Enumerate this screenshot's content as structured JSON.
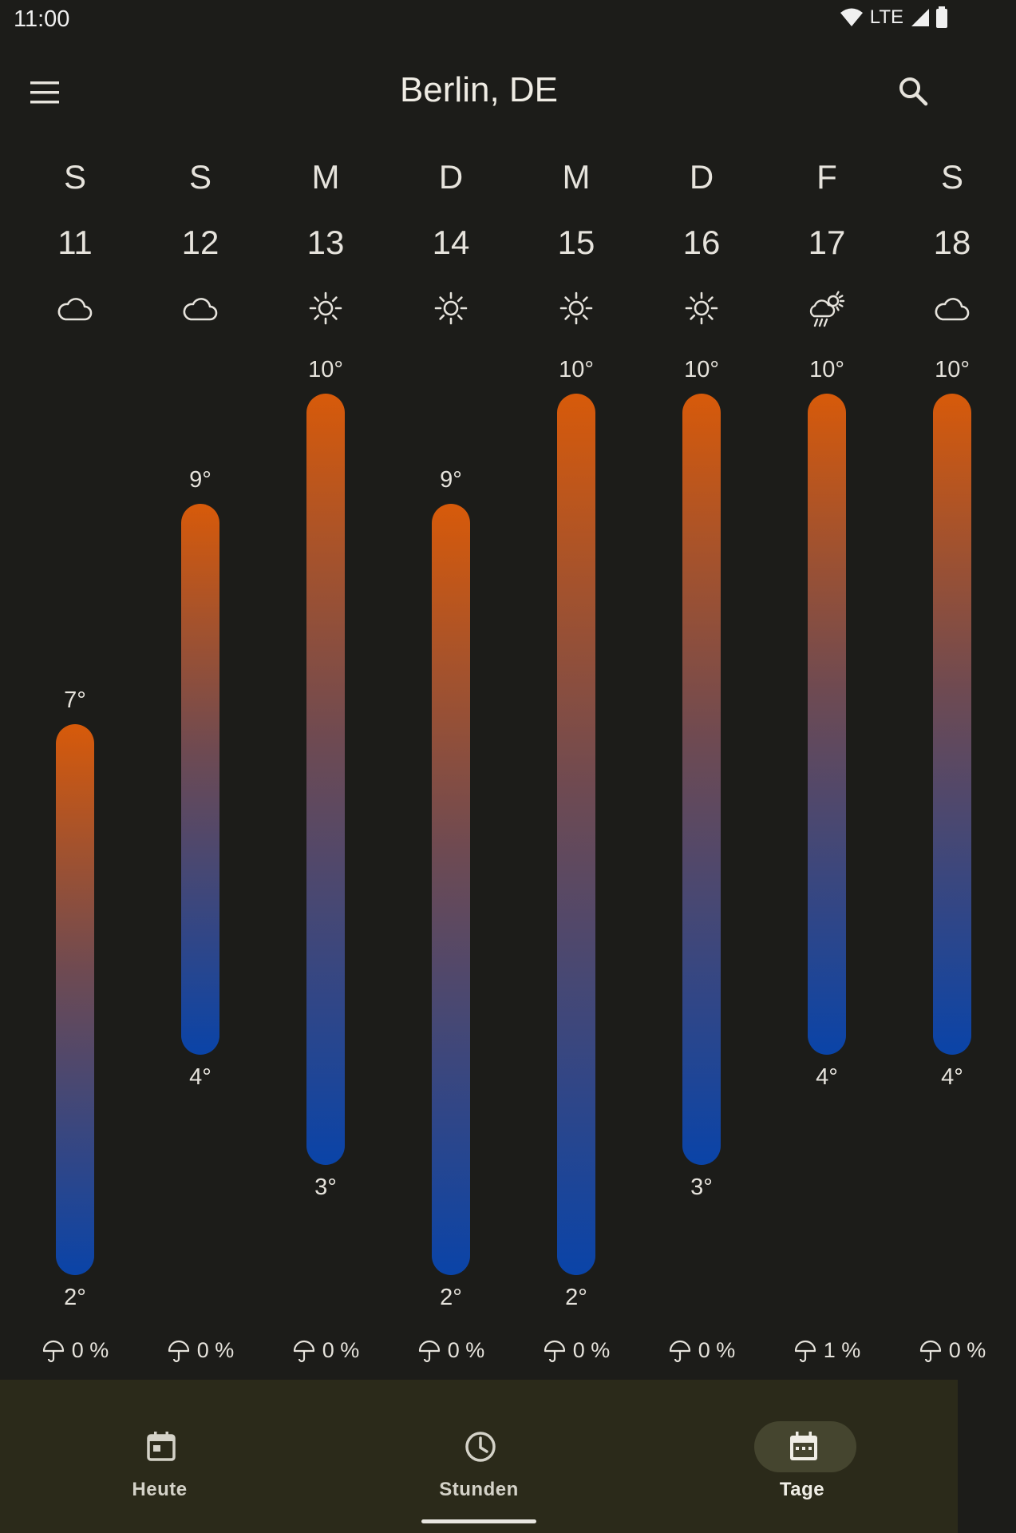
{
  "status_bar": {
    "time": "11:00",
    "network": "LTE"
  },
  "app_bar": {
    "title": "Berlin, DE",
    "menu_icon": "menu-icon",
    "search_icon": "search-icon"
  },
  "forecast": [
    {
      "dow": "S",
      "date": "11",
      "icon": "cloudy-icon",
      "hi": "7°",
      "lo": "2°",
      "hi_value": 7,
      "lo_value": 2,
      "precip": "0 %"
    },
    {
      "dow": "S",
      "date": "12",
      "icon": "cloudy-icon",
      "hi": "9°",
      "lo": "4°",
      "hi_value": 9,
      "lo_value": 4,
      "precip": "0 %"
    },
    {
      "dow": "M",
      "date": "13",
      "icon": "sunny-icon",
      "hi": "10°",
      "lo": "3°",
      "hi_value": 10,
      "lo_value": 3,
      "precip": "0 %"
    },
    {
      "dow": "D",
      "date": "14",
      "icon": "sunny-icon",
      "hi": "9°",
      "lo": "2°",
      "hi_value": 9,
      "lo_value": 2,
      "precip": "0 %"
    },
    {
      "dow": "M",
      "date": "15",
      "icon": "sunny-icon",
      "hi": "10°",
      "lo": "2°",
      "hi_value": 10,
      "lo_value": 2,
      "precip": "0 %"
    },
    {
      "dow": "D",
      "date": "16",
      "icon": "sunny-icon",
      "hi": "10°",
      "lo": "3°",
      "hi_value": 10,
      "lo_value": 3,
      "precip": "0 %"
    },
    {
      "dow": "F",
      "date": "17",
      "icon": "sun-rain-icon",
      "hi": "10°",
      "lo": "4°",
      "hi_value": 10,
      "lo_value": 4,
      "precip": "1 %"
    },
    {
      "dow": "S",
      "date": "18",
      "icon": "cloudy-icon",
      "hi": "10°",
      "lo": "4°",
      "hi_value": 10,
      "lo_value": 4,
      "precip": "0 %"
    }
  ],
  "nav": [
    {
      "label": "Heute",
      "icon": "calendar-today-icon",
      "active": false
    },
    {
      "label": "Stunden",
      "icon": "clock-icon",
      "active": false
    },
    {
      "label": "Tage",
      "icon": "calendar-days-icon",
      "active": true
    }
  ],
  "colors": {
    "background": "#1c1c19",
    "bar_warm": "#d75a0a",
    "bar_cold": "#0a44a8",
    "nav_background": "#2b2a1a",
    "nav_active_pill": "#45452f"
  }
}
